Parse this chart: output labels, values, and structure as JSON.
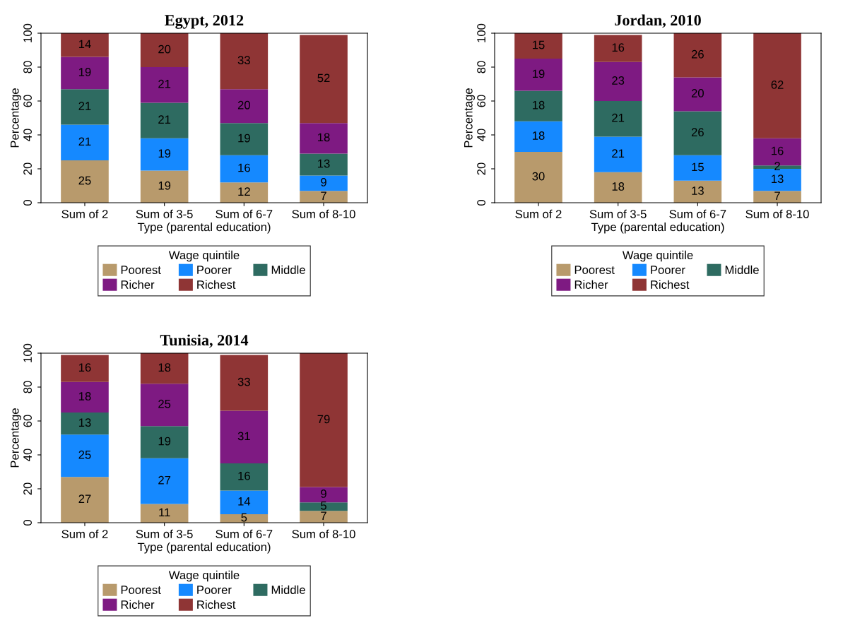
{
  "chart_data": [
    {
      "type": "bar",
      "stacked": true,
      "title": "Egypt, 2012",
      "xlabel": "Type (parental education)",
      "ylabel": "Percentage",
      "legend_title": "Wage quintile",
      "legend": "bottom",
      "grid": false,
      "ylim": [
        0,
        100
      ],
      "yticks": [
        0,
        20,
        40,
        60,
        80,
        100
      ],
      "categories": [
        "Sum of 2",
        "Sum of 3-5",
        "Sum of 6-7",
        "Sum of 8-10"
      ],
      "series": [
        {
          "name": "Poorest",
          "color": "#b89a6c",
          "values": [
            25,
            19,
            12,
            7
          ],
          "value_labels": [
            "25",
            "19",
            "12",
            "7"
          ]
        },
        {
          "name": "Poorer",
          "color": "#1589ff",
          "values": [
            21,
            19,
            16,
            9
          ],
          "value_labels": [
            "21",
            "19",
            "16",
            "9"
          ]
        },
        {
          "name": "Middle",
          "color": "#2e6b61",
          "values": [
            21,
            21,
            19,
            13
          ],
          "value_labels": [
            "21",
            "21",
            "19",
            "13"
          ]
        },
        {
          "name": "Richer",
          "color": "#7e1a82",
          "values": [
            19,
            21,
            20,
            18
          ],
          "value_labels": [
            "19",
            "21",
            "20",
            "18"
          ]
        },
        {
          "name": "Richest",
          "color": "#8f3535",
          "values": [
            14,
            20,
            33,
            52
          ],
          "value_labels": [
            "14",
            "20",
            "33",
            "52"
          ]
        }
      ]
    },
    {
      "type": "bar",
      "stacked": true,
      "title": "Jordan, 2010",
      "xlabel": "Type (parental education)",
      "ylabel": "Percentage",
      "legend_title": "Wage quintile",
      "legend": "bottom",
      "grid": false,
      "ylim": [
        0,
        100
      ],
      "yticks": [
        0,
        20,
        40,
        60,
        80,
        100
      ],
      "categories": [
        "Sum of 2",
        "Sum of 3-5",
        "Sum of 6-7",
        "Sum of 8-10"
      ],
      "series": [
        {
          "name": "Poorest",
          "color": "#b89a6c",
          "values": [
            30,
            18,
            13,
            7
          ],
          "value_labels": [
            "30",
            "18",
            "13",
            "7"
          ]
        },
        {
          "name": "Poorer",
          "color": "#1589ff",
          "values": [
            18,
            21,
            15,
            13
          ],
          "value_labels": [
            "18",
            "21",
            "15",
            "13"
          ]
        },
        {
          "name": "Middle",
          "color": "#2e6b61",
          "values": [
            18,
            21,
            26,
            2
          ],
          "value_labels": [
            "18",
            "21",
            "26",
            "2"
          ]
        },
        {
          "name": "Richer",
          "color": "#7e1a82",
          "values": [
            19,
            23,
            20,
            16
          ],
          "value_labels": [
            "19",
            "23",
            "20",
            "16"
          ]
        },
        {
          "name": "Richest",
          "color": "#8f3535",
          "values": [
            15,
            16,
            26,
            62
          ],
          "value_labels": [
            "15",
            "16",
            "26",
            "62"
          ]
        }
      ]
    },
    {
      "type": "bar",
      "stacked": true,
      "title": "Tunisia, 2014",
      "xlabel": "Type (parental education)",
      "ylabel": "Percentage",
      "legend_title": "Wage quintile",
      "legend": "bottom",
      "grid": false,
      "ylim": [
        0,
        100
      ],
      "yticks": [
        0,
        20,
        40,
        60,
        80,
        100
      ],
      "categories": [
        "Sum of 2",
        "Sum of 3-5",
        "Sum of 6-7",
        "Sum of 8-10"
      ],
      "series": [
        {
          "name": "Poorest",
          "color": "#b89a6c",
          "values": [
            27,
            11,
            5,
            7
          ],
          "value_labels": [
            "27",
            "11",
            "5",
            "7"
          ]
        },
        {
          "name": "Poorer",
          "color": "#1589ff",
          "values": [
            25,
            27,
            14,
            0
          ],
          "value_labels": [
            "25",
            "27",
            "14",
            null
          ]
        },
        {
          "name": "Middle",
          "color": "#2e6b61",
          "values": [
            13,
            19,
            16,
            5
          ],
          "value_labels": [
            "13",
            "19",
            "16",
            "5"
          ]
        },
        {
          "name": "Richer",
          "color": "#7e1a82",
          "values": [
            18,
            25,
            31,
            9
          ],
          "value_labels": [
            "18",
            "25",
            "31",
            "9"
          ]
        },
        {
          "name": "Richest",
          "color": "#8f3535",
          "values": [
            16,
            18,
            33,
            79
          ],
          "value_labels": [
            "16",
            "18",
            "33",
            "79"
          ]
        }
      ]
    }
  ]
}
